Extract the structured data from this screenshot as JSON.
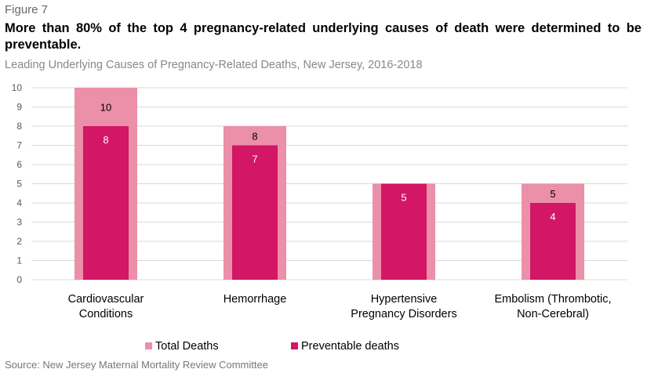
{
  "figure_label": "Figure 7",
  "headline": "More than 80% of the top 4 pregnancy-related underlying causes of death were determined to be preventable.",
  "source": "Source: New Jersey Maternal Mortality Review Committee",
  "chart_data": {
    "type": "bar",
    "title": "Leading Underlying Causes of Pregnancy-Related Deaths, New Jersey, 2016-2018",
    "categories": [
      [
        "Cardiovascular",
        "Conditions"
      ],
      [
        "Hemorrhage"
      ],
      [
        "Hypertensive",
        "Pregnancy Disorders"
      ],
      [
        "Embolism (Thrombotic,",
        "Non-Cerebral)"
      ]
    ],
    "series": [
      {
        "name": "Total Deaths",
        "values": [
          10,
          8,
          5,
          5
        ],
        "color": "#EC8FA9"
      },
      {
        "name": "Preventable deaths",
        "values": [
          8,
          7,
          5,
          4
        ],
        "color": "#D31665"
      }
    ],
    "ylim": [
      0,
      10
    ],
    "yticks": [
      0,
      1,
      2,
      3,
      4,
      5,
      6,
      7,
      8,
      9,
      10
    ],
    "grid": true,
    "legend_position": "bottom",
    "overlapped": true
  }
}
